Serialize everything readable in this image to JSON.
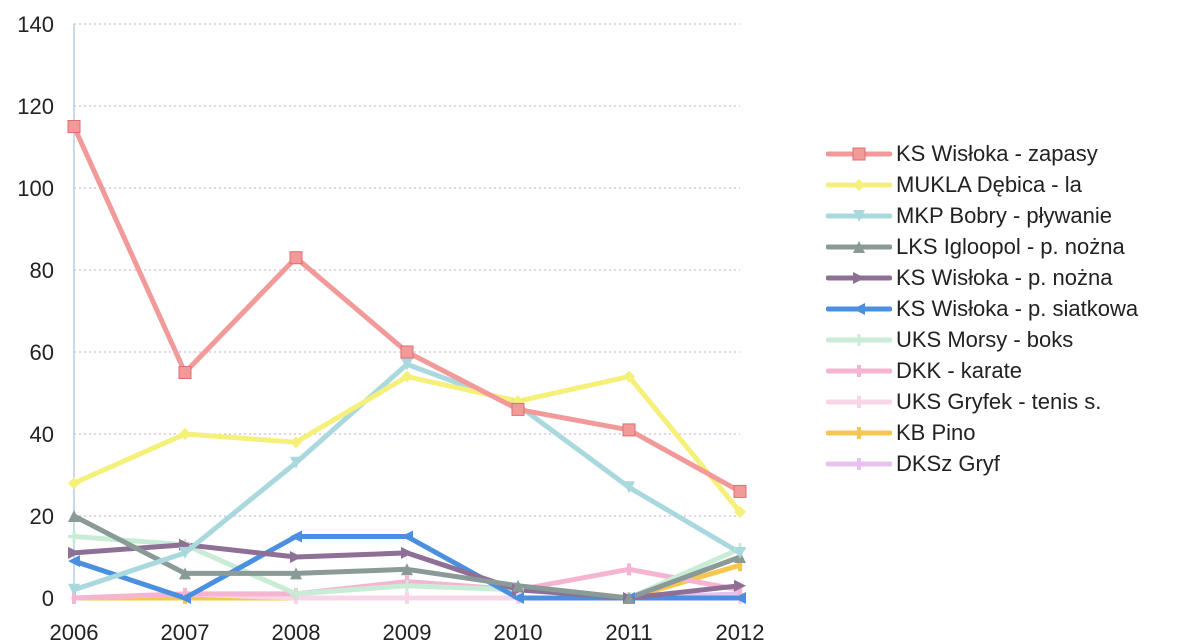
{
  "chart_data": {
    "type": "line",
    "x": [
      "2006",
      "2007",
      "2008",
      "2009",
      "2010",
      "2011",
      "2012"
    ],
    "ylim": [
      0,
      140
    ],
    "yticks": [
      0,
      20,
      40,
      60,
      80,
      100,
      120,
      140
    ],
    "grid": true,
    "legend_position": "right",
    "series": [
      {
        "name": "KS Wisłoka - zapasy",
        "color": "#f29a9a",
        "marker": "square",
        "values": [
          115,
          55,
          83,
          60,
          46,
          41,
          26
        ]
      },
      {
        "name": "MUKLA Dębica - la",
        "color": "#f5f07a",
        "marker": "diamond",
        "values": [
          28,
          40,
          38,
          54,
          48,
          54,
          21
        ]
      },
      {
        "name": "MKP Bobry - pływanie",
        "color": "#a9d8df",
        "marker": "triangle-down",
        "values": [
          2,
          11,
          33,
          57,
          47,
          27,
          11
        ]
      },
      {
        "name": "LKS Igloopol - p. nożna",
        "color": "#8a9a96",
        "marker": "triangle-up",
        "values": [
          20,
          6,
          6,
          7,
          3,
          0,
          10
        ]
      },
      {
        "name": "KS Wisłoka - p. nożna",
        "color": "#8e6f95",
        "marker": "triangle-right",
        "values": [
          11,
          13,
          10,
          11,
          2,
          0,
          3
        ]
      },
      {
        "name": "KS Wisłoka - p. siatkowa",
        "color": "#4a8fe0",
        "marker": "triangle-left",
        "values": [
          9,
          0,
          15,
          15,
          0,
          0,
          0
        ]
      },
      {
        "name": "UKS Morsy - boks",
        "color": "#c9ecd6",
        "marker": "plus",
        "values": [
          15,
          13,
          1,
          3,
          2,
          0,
          12
        ]
      },
      {
        "name": "DKK - karate",
        "color": "#f5b5d2",
        "marker": "tick",
        "values": [
          0,
          1,
          1,
          4,
          2,
          7,
          2
        ]
      },
      {
        "name": "UKS Gryfek - tenis s.",
        "color": "#f8d6e8",
        "marker": "tick",
        "values": [
          0,
          1,
          0,
          0,
          0,
          0,
          0
        ]
      },
      {
        "name": "KB Pino",
        "color": "#f7c64e",
        "marker": "tick",
        "values": [
          0,
          0,
          0,
          0,
          0,
          0,
          8
        ]
      },
      {
        "name": "DKSz Gryf",
        "color": "#e8c2ef",
        "marker": "tick",
        "values": [
          0,
          0,
          0,
          0,
          0,
          0,
          1
        ]
      }
    ]
  }
}
